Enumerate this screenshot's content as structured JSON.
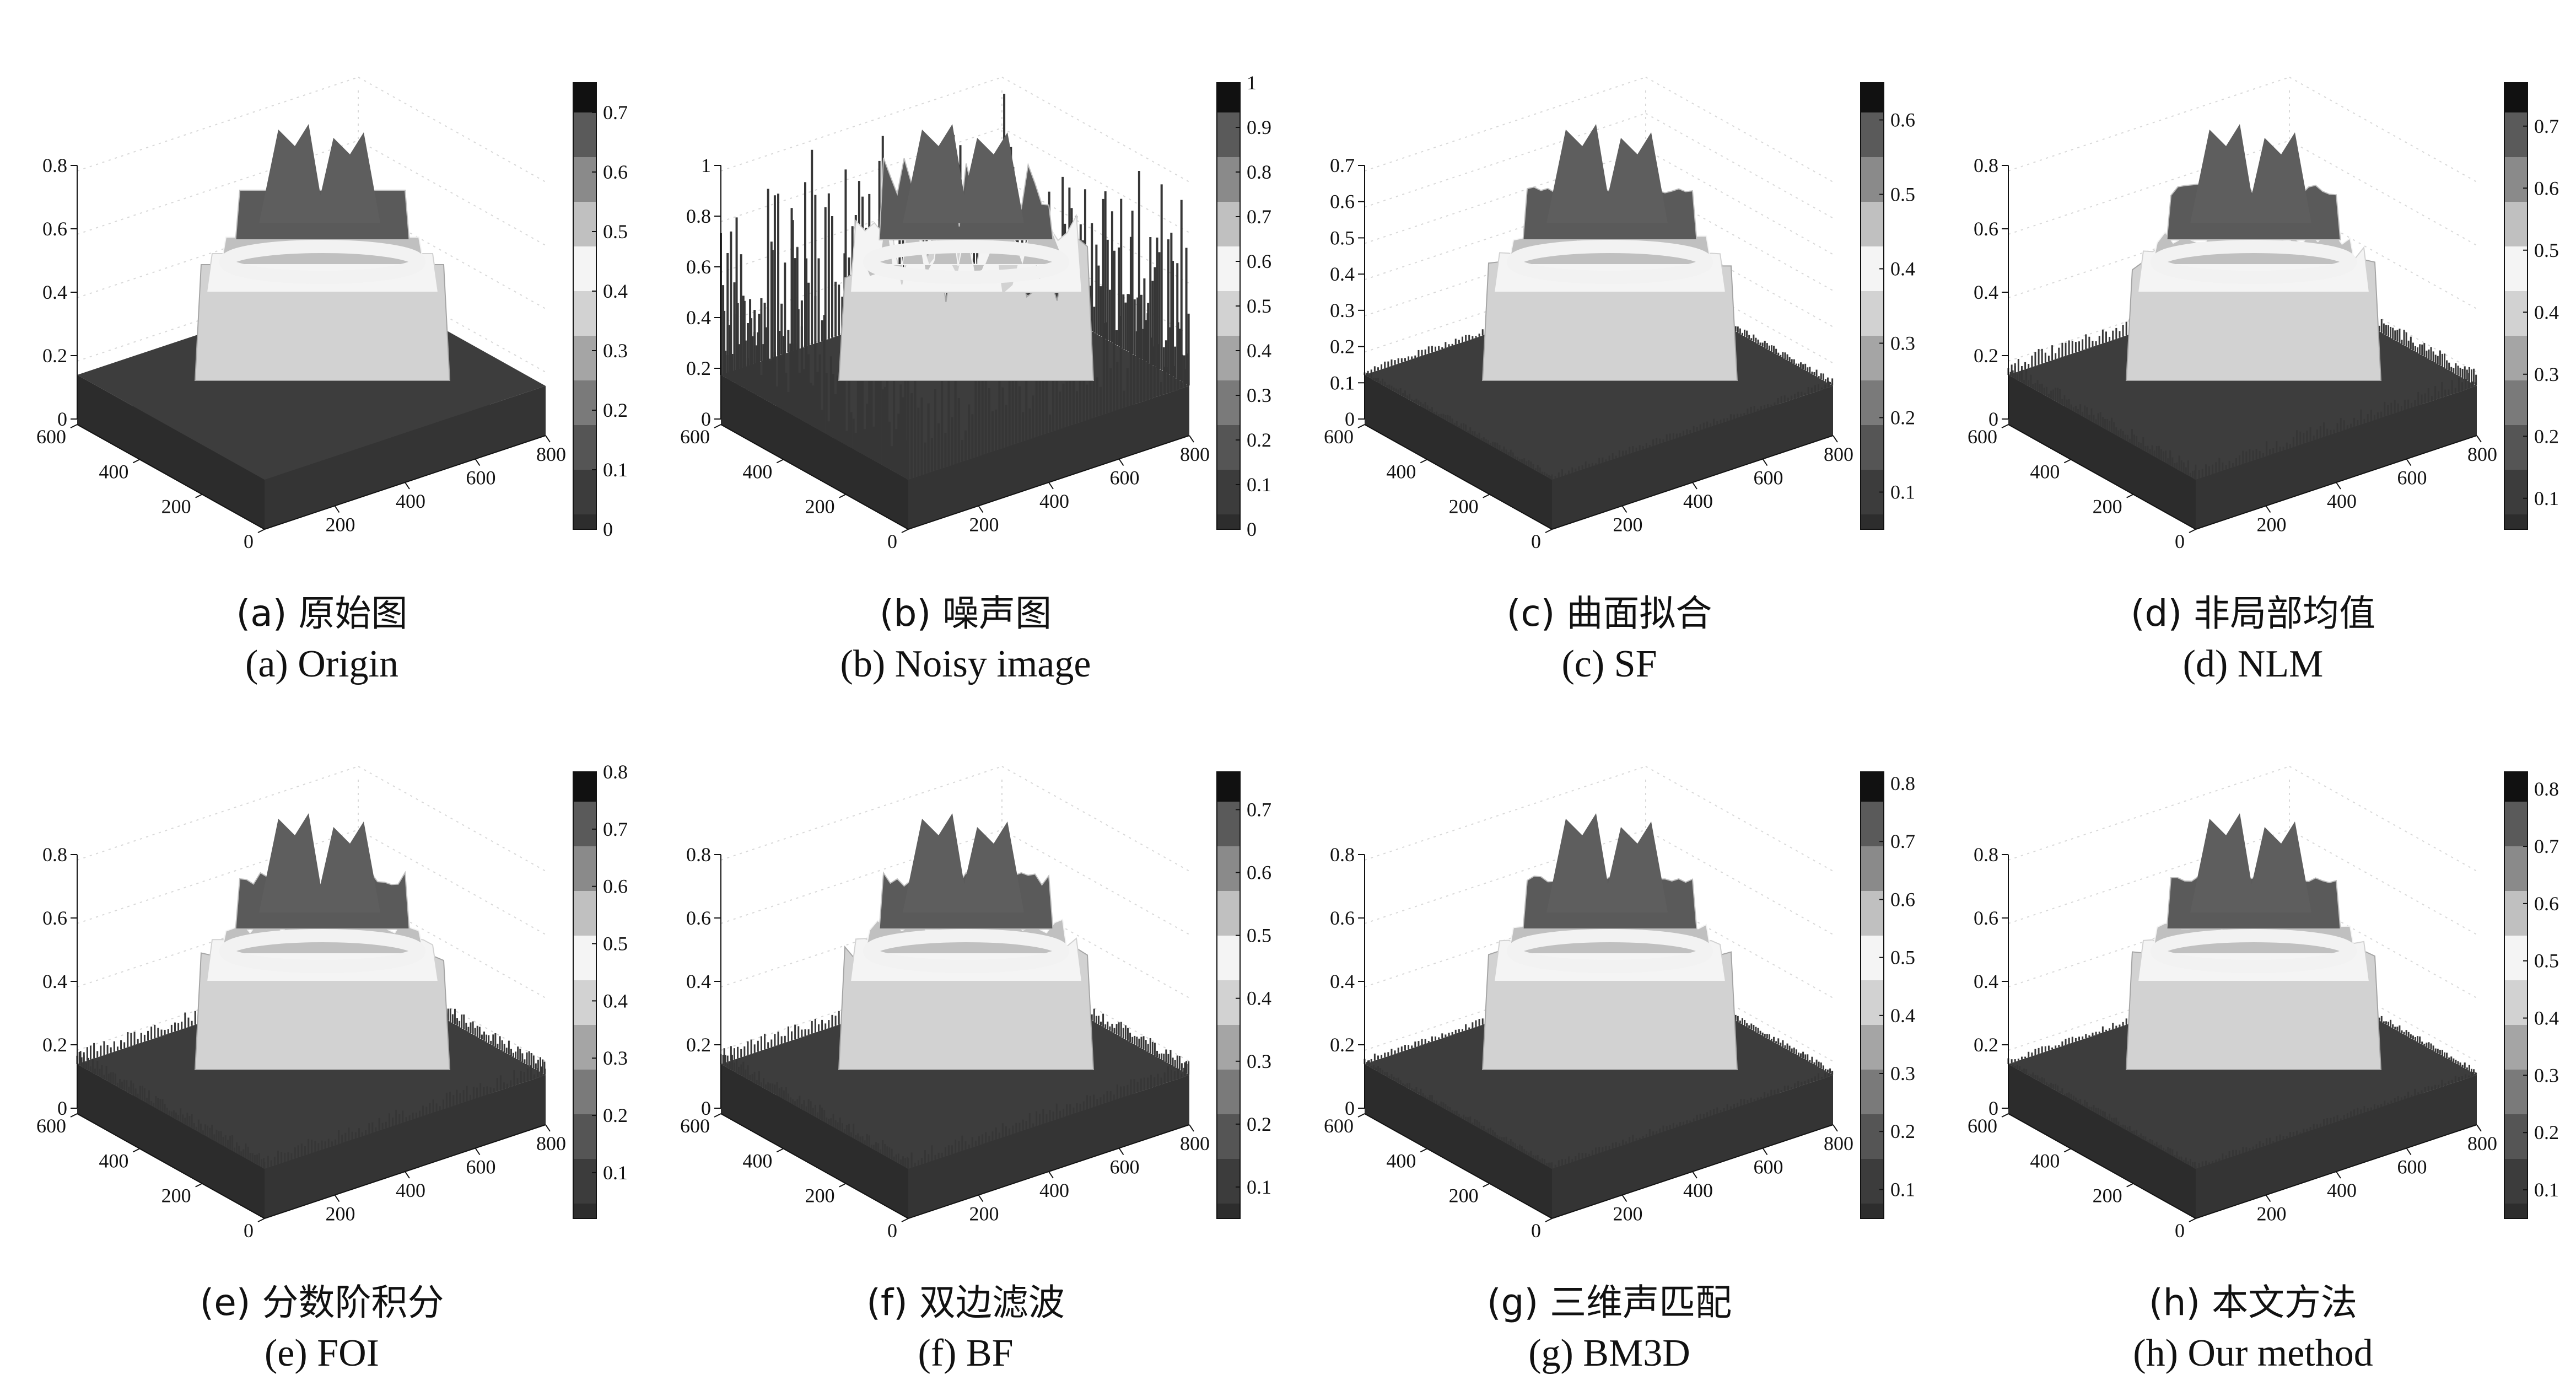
{
  "colormap": [
    "#2d2d2d",
    "#3c3c3c",
    "#555555",
    "#7a7a7a",
    "#a5a5a5",
    "#d2d2d2",
    "#f4f4f4",
    "#c0c0c0",
    "#8a8a8a",
    "#5a5a5a",
    "#111111"
  ],
  "panels": [
    {
      "caption_cn": "(a) 原始图",
      "caption_en": "(a) Origin",
      "z_ticks": [
        "0",
        "0.2",
        "0.4",
        "0.6",
        "0.8"
      ],
      "y_ticks": [
        "0",
        "200",
        "400",
        "600"
      ],
      "x_ticks": [
        "200",
        "400",
        "600",
        "800"
      ],
      "colorbar_ticks": [
        "0",
        "0.1",
        "0.2",
        "0.3",
        "0.4",
        "0.5",
        "0.6",
        "0.7"
      ]
    },
    {
      "caption_cn": "(b) 噪声图",
      "caption_en": "(b) Noisy image",
      "z_ticks": [
        "0",
        "0.2",
        "0.4",
        "0.6",
        "0.8",
        "1"
      ],
      "y_ticks": [
        "0",
        "200",
        "400",
        "600"
      ],
      "x_ticks": [
        "200",
        "400",
        "600",
        "800"
      ],
      "colorbar_ticks": [
        "0",
        "0.1",
        "0.2",
        "0.3",
        "0.4",
        "0.5",
        "0.6",
        "0.7",
        "0.8",
        "0.9",
        "1"
      ]
    },
    {
      "caption_cn": "(c) 曲面拟合",
      "caption_en": "(c) SF",
      "z_ticks": [
        "0",
        "0.1",
        "0.2",
        "0.3",
        "0.4",
        "0.5",
        "0.6",
        "0.7"
      ],
      "y_ticks": [
        "0",
        "200",
        "400",
        "600"
      ],
      "x_ticks": [
        "200",
        "400",
        "600",
        "800"
      ],
      "colorbar_ticks": [
        "0.1",
        "0.2",
        "0.3",
        "0.4",
        "0.5",
        "0.6"
      ]
    },
    {
      "caption_cn": "(d) 非局部均值",
      "caption_en": "(d) NLM",
      "z_ticks": [
        "0",
        "0.2",
        "0.4",
        "0.6",
        "0.8"
      ],
      "y_ticks": [
        "0",
        "200",
        "400",
        "600"
      ],
      "x_ticks": [
        "200",
        "400",
        "600",
        "800"
      ],
      "colorbar_ticks": [
        "0.1",
        "0.2",
        "0.3",
        "0.4",
        "0.5",
        "0.6",
        "0.7"
      ]
    },
    {
      "caption_cn": "(e) 分数阶积分",
      "caption_en": "(e) FOI",
      "z_ticks": [
        "0",
        "0.2",
        "0.4",
        "0.6",
        "0.8"
      ],
      "y_ticks": [
        "0",
        "200",
        "400",
        "600"
      ],
      "x_ticks": [
        "200",
        "400",
        "600",
        "800"
      ],
      "colorbar_ticks": [
        "0.1",
        "0.2",
        "0.3",
        "0.4",
        "0.5",
        "0.6",
        "0.7",
        "0.8"
      ]
    },
    {
      "caption_cn": "(f) 双边滤波",
      "caption_en": "(f) BF",
      "z_ticks": [
        "0",
        "0.2",
        "0.4",
        "0.6",
        "0.8"
      ],
      "y_ticks": [
        "0",
        "200",
        "400",
        "600"
      ],
      "x_ticks": [
        "200",
        "400",
        "600",
        "800"
      ],
      "colorbar_ticks": [
        "0.1",
        "0.2",
        "0.3",
        "0.4",
        "0.5",
        "0.6",
        "0.7"
      ]
    },
    {
      "caption_cn": "(g) 三维声匹配",
      "caption_en": "(g) BM3D",
      "z_ticks": [
        "0",
        "0.2",
        "0.4",
        "0.6",
        "0.8"
      ],
      "y_ticks": [
        "0",
        "200",
        "400",
        "600"
      ],
      "x_ticks": [
        "200",
        "400",
        "600",
        "800"
      ],
      "colorbar_ticks": [
        "0.1",
        "0.2",
        "0.3",
        "0.4",
        "0.5",
        "0.6",
        "0.7",
        "0.8"
      ]
    },
    {
      "caption_cn": "(h) 本文方法",
      "caption_en": "(h) Our method",
      "z_ticks": [
        "0",
        "0.2",
        "0.4",
        "0.6",
        "0.8"
      ],
      "y_ticks": [
        "0",
        "200",
        "400",
        "600"
      ],
      "x_ticks": [
        "200",
        "400",
        "600",
        "800"
      ],
      "colorbar_ticks": [
        "0.1",
        "0.2",
        "0.3",
        "0.4",
        "0.5",
        "0.6",
        "0.7",
        "0.8"
      ]
    }
  ],
  "chart_data": [
    {
      "type": "surface",
      "panel": "a",
      "x_range": [
        0,
        800
      ],
      "y_range": [
        0,
        600
      ],
      "z_range": [
        0,
        0.8
      ],
      "colorbar_range": [
        0,
        0.75
      ],
      "noise": "none"
    },
    {
      "type": "surface",
      "panel": "b",
      "x_range": [
        0,
        800
      ],
      "y_range": [
        0,
        600
      ],
      "z_range": [
        0,
        1
      ],
      "colorbar_range": [
        0,
        1
      ],
      "noise": "heavy"
    },
    {
      "type": "surface",
      "panel": "c",
      "x_range": [
        0,
        800
      ],
      "y_range": [
        0,
        600
      ],
      "z_range": [
        0,
        0.7
      ],
      "colorbar_range": [
        0.05,
        0.65
      ],
      "noise": "low"
    },
    {
      "type": "surface",
      "panel": "d",
      "x_range": [
        0,
        800
      ],
      "y_range": [
        0,
        600
      ],
      "z_range": [
        0,
        0.8
      ],
      "colorbar_range": [
        0.05,
        0.77
      ],
      "noise": "medium"
    },
    {
      "type": "surface",
      "panel": "e",
      "x_range": [
        0,
        800
      ],
      "y_range": [
        0,
        600
      ],
      "z_range": [
        0,
        0.8
      ],
      "colorbar_range": [
        0.02,
        0.8
      ],
      "noise": "medium"
    },
    {
      "type": "surface",
      "panel": "f",
      "x_range": [
        0,
        800
      ],
      "y_range": [
        0,
        600
      ],
      "z_range": [
        0,
        0.8
      ],
      "colorbar_range": [
        0.05,
        0.76
      ],
      "noise": "medium"
    },
    {
      "type": "surface",
      "panel": "g",
      "x_range": [
        0,
        800
      ],
      "y_range": [
        0,
        600
      ],
      "z_range": [
        0,
        0.8
      ],
      "colorbar_range": [
        0.05,
        0.82
      ],
      "noise": "low"
    },
    {
      "type": "surface",
      "panel": "h",
      "x_range": [
        0,
        800
      ],
      "y_range": [
        0,
        600
      ],
      "z_range": [
        0,
        0.8
      ],
      "colorbar_range": [
        0.05,
        0.83
      ],
      "noise": "low"
    }
  ]
}
